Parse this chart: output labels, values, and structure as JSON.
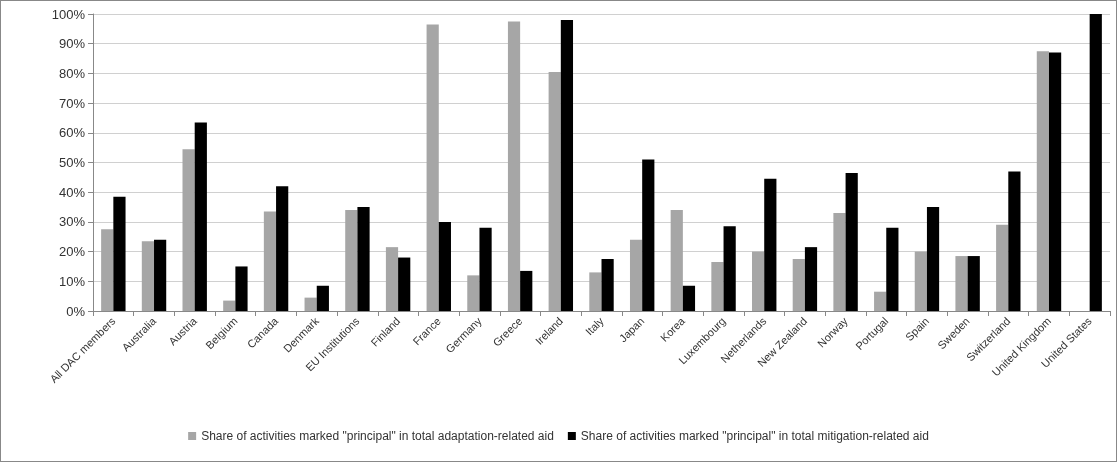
{
  "chart_data": {
    "type": "bar",
    "categories": [
      "All DAC members",
      "Australia",
      "Austria",
      "Belgium",
      "Canada",
      "Denmark",
      "EU Institutions",
      "Finland",
      "France",
      "Germany",
      "Greece",
      "Ireland",
      "Italy",
      "Japan",
      "Korea",
      "Luxembourg",
      "Netherlands",
      "New Zealand",
      "Norway",
      "Portugal",
      "Spain",
      "Sweden",
      "Switzerland",
      "United Kingdom",
      "United States"
    ],
    "series": [
      {
        "name": "Share of activities marked \"principal\" in total adaptation-related aid",
        "color": "#a6a6a6",
        "values": [
          27.5,
          23.5,
          54.5,
          3.5,
          33.5,
          4.5,
          34,
          21.5,
          96.5,
          12,
          97.5,
          80.5,
          13,
          24,
          34,
          16.5,
          20,
          17.5,
          33,
          6.5,
          20,
          18.5,
          29,
          87.5,
          0
        ]
      },
      {
        "name": "Share of activities marked \"principal\" in total mitigation-related aid",
        "color": "#000000",
        "values": [
          38.5,
          24,
          63.5,
          15,
          42,
          8.5,
          35,
          18,
          30,
          28,
          13.5,
          98,
          17.5,
          51,
          8.5,
          28.5,
          44.5,
          21.5,
          46.5,
          28,
          35,
          18.5,
          47,
          87,
          100
        ]
      }
    ],
    "ylim": [
      0,
      100
    ],
    "yticks": [
      {
        "value": 0,
        "label": "0%"
      },
      {
        "value": 10,
        "label": "10%"
      },
      {
        "value": 20,
        "label": "20%"
      },
      {
        "value": 30,
        "label": "30%"
      },
      {
        "value": 40,
        "label": "40%"
      },
      {
        "value": 50,
        "label": "50%"
      },
      {
        "value": 60,
        "label": "60%"
      },
      {
        "value": 70,
        "label": "70%"
      },
      {
        "value": 80,
        "label": "80%"
      },
      {
        "value": 90,
        "label": "90%"
      },
      {
        "value": 100,
        "label": "100%"
      }
    ],
    "grid": "y",
    "legend": "bottom"
  }
}
